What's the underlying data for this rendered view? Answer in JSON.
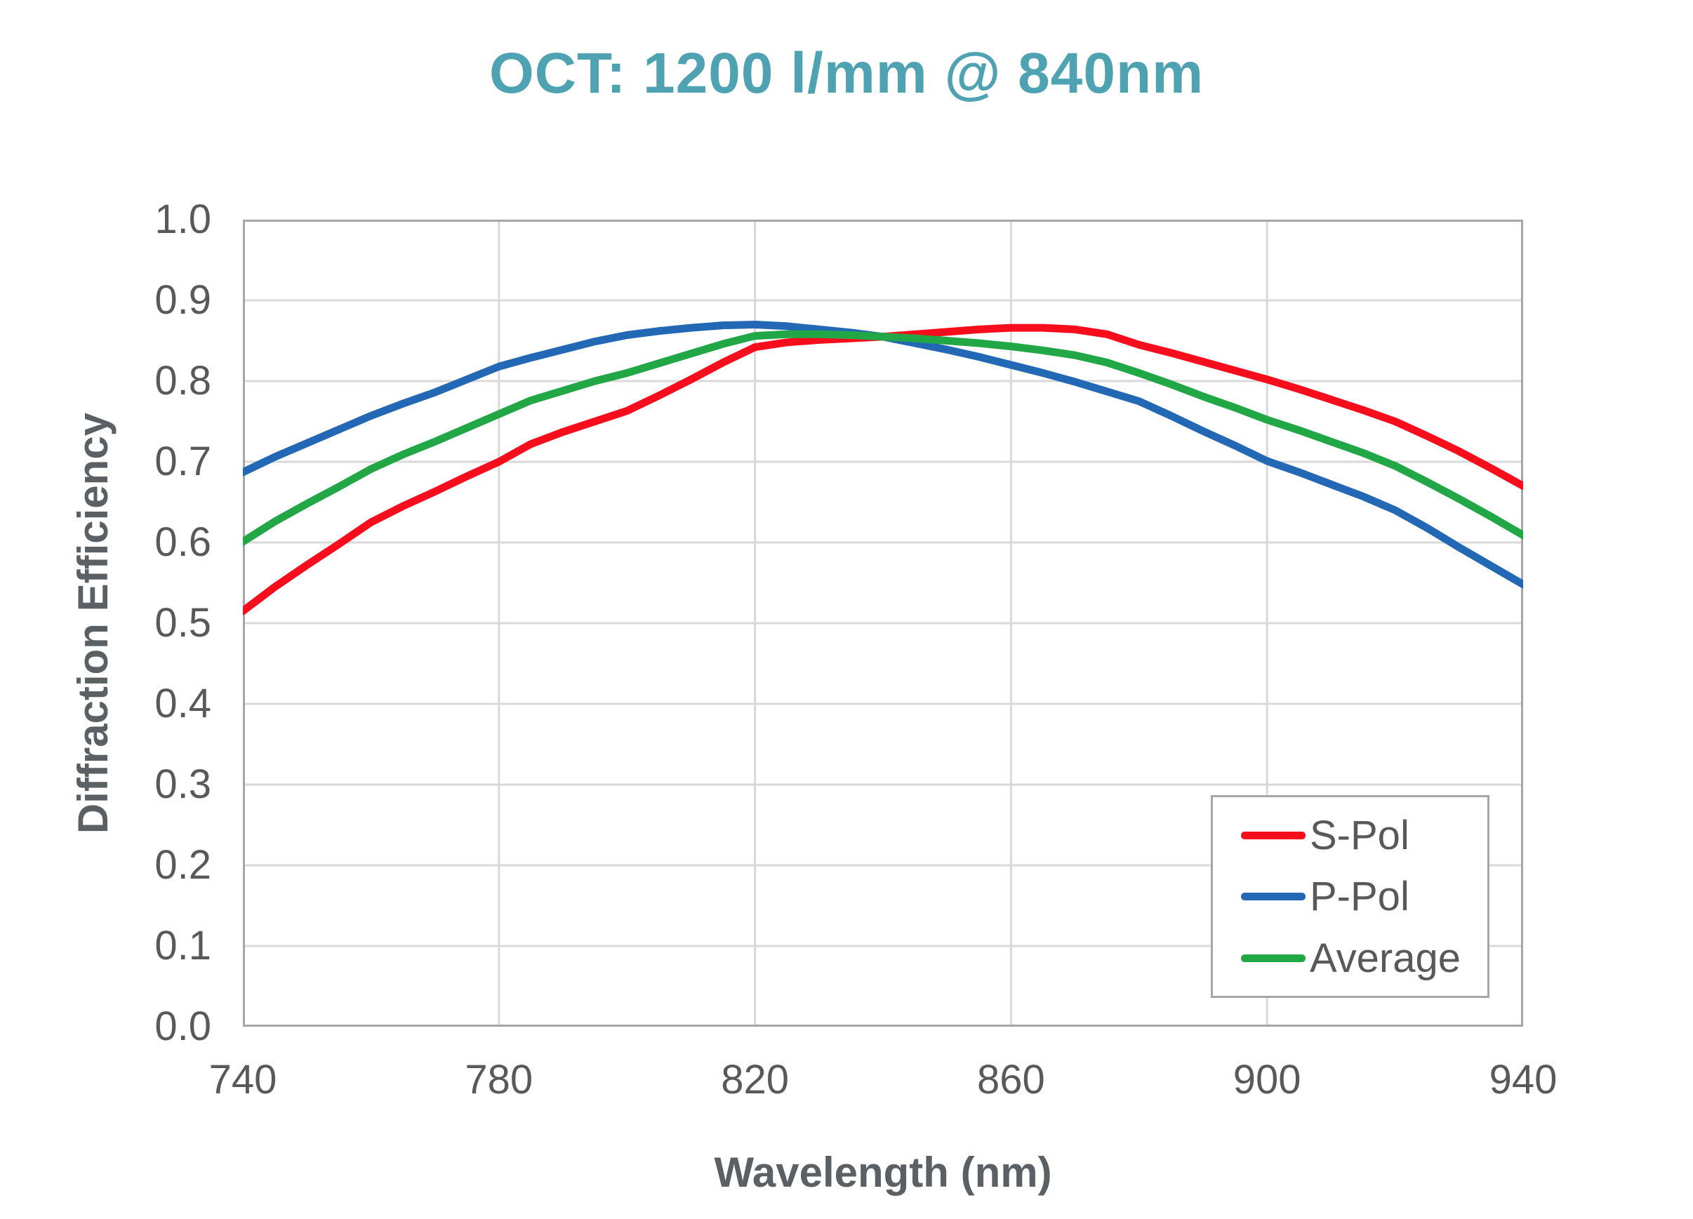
{
  "chart_data": {
    "type": "line",
    "title": "OCT: 1200 l/mm @ 840nm",
    "title_color": "#4ea2b1",
    "xlabel": "Wavelength (nm)",
    "ylabel": "Diffraction Efficiency",
    "xlim": [
      740,
      940
    ],
    "ylim": [
      0.0,
      1.0
    ],
    "x_ticks": [
      740,
      780,
      820,
      860,
      900,
      940
    ],
    "y_ticks": [
      "0.0",
      "0.1",
      "0.2",
      "0.3",
      "0.4",
      "0.5",
      "0.6",
      "0.7",
      "0.8",
      "0.9",
      "1.0"
    ],
    "grid": true,
    "grid_color": "#d9d9d9",
    "axis_color": "#a6a6a6",
    "tick_label_color": "#595959",
    "legend_position": "inside-lower-right",
    "x": [
      740,
      745,
      750,
      755,
      760,
      765,
      770,
      775,
      780,
      785,
      790,
      795,
      800,
      805,
      810,
      815,
      820,
      825,
      830,
      835,
      840,
      845,
      850,
      855,
      860,
      865,
      870,
      875,
      880,
      885,
      890,
      895,
      900,
      905,
      910,
      915,
      920,
      925,
      930,
      935,
      940
    ],
    "series": [
      {
        "name": "S-Pol",
        "color": "#f70d1b",
        "values": [
          0.515,
          0.545,
          0.572,
          0.598,
          0.625,
          0.645,
          0.663,
          0.682,
          0.7,
          0.722,
          0.737,
          0.75,
          0.763,
          0.782,
          0.802,
          0.823,
          0.842,
          0.848,
          0.851,
          0.853,
          0.855,
          0.858,
          0.861,
          0.864,
          0.866,
          0.866,
          0.864,
          0.858,
          0.845,
          0.835,
          0.824,
          0.813,
          0.802,
          0.79,
          0.777,
          0.764,
          0.75,
          0.732,
          0.713,
          0.692,
          0.67
        ]
      },
      {
        "name": "P-Pol",
        "color": "#2268b5",
        "values": [
          0.687,
          0.706,
          0.723,
          0.74,
          0.757,
          0.772,
          0.786,
          0.802,
          0.818,
          0.829,
          0.839,
          0.849,
          0.857,
          0.862,
          0.866,
          0.869,
          0.87,
          0.868,
          0.864,
          0.86,
          0.855,
          0.847,
          0.839,
          0.83,
          0.82,
          0.81,
          0.799,
          0.787,
          0.775,
          0.757,
          0.738,
          0.72,
          0.701,
          0.687,
          0.672,
          0.657,
          0.64,
          0.618,
          0.594,
          0.571,
          0.548
        ]
      },
      {
        "name": "Average",
        "color": "#22a746",
        "values": [
          0.601,
          0.626,
          0.648,
          0.669,
          0.691,
          0.709,
          0.725,
          0.742,
          0.759,
          0.776,
          0.788,
          0.8,
          0.81,
          0.822,
          0.834,
          0.846,
          0.856,
          0.858,
          0.858,
          0.857,
          0.855,
          0.853,
          0.85,
          0.847,
          0.843,
          0.838,
          0.832,
          0.823,
          0.81,
          0.796,
          0.781,
          0.767,
          0.752,
          0.739,
          0.725,
          0.711,
          0.695,
          0.675,
          0.654,
          0.632,
          0.609
        ]
      }
    ]
  }
}
